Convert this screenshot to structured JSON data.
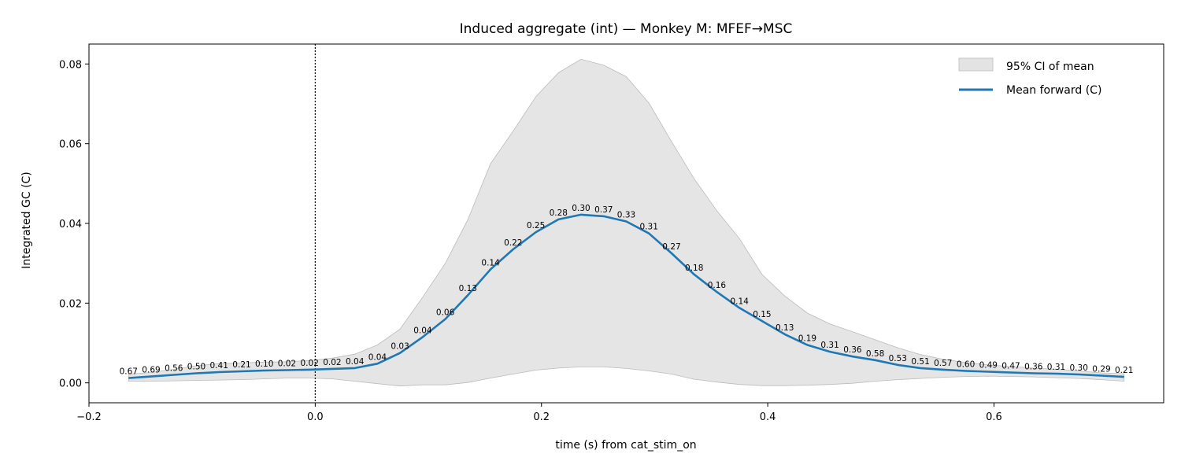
{
  "chart_data": {
    "type": "line",
    "title": "Induced aggregate (int) — Monkey M: MFEF→MSC",
    "xlabel": "time (s) from cat_stim_on",
    "ylabel": "Integrated GC (C)",
    "xlim": [
      -0.2,
      0.75
    ],
    "ylim": [
      -0.005,
      0.085
    ],
    "xticks": [
      -0.2,
      0.0,
      0.2,
      0.4,
      0.6
    ],
    "xtick_labels": [
      "−0.2",
      "0.0",
      "0.2",
      "0.4",
      "0.6"
    ],
    "yticks": [
      0.0,
      0.02,
      0.04,
      0.06,
      0.08
    ],
    "ytick_labels": [
      "0.00",
      "0.02",
      "0.04",
      "0.06",
      "0.08"
    ],
    "event_line_x": 0.0,
    "grid": false,
    "legend_position": "top-right",
    "series": [
      {
        "name": "Mean forward (C)",
        "color": "#1f77b4",
        "x": [
          -0.165,
          -0.145,
          -0.125,
          -0.105,
          -0.085,
          -0.065,
          -0.045,
          -0.025,
          -0.005,
          0.015,
          0.035,
          0.055,
          0.075,
          0.095,
          0.115,
          0.135,
          0.155,
          0.175,
          0.195,
          0.215,
          0.235,
          0.255,
          0.275,
          0.295,
          0.315,
          0.335,
          0.355,
          0.375,
          0.395,
          0.415,
          0.435,
          0.455,
          0.475,
          0.495,
          0.515,
          0.535,
          0.555,
          0.575,
          0.595,
          0.615,
          0.635,
          0.655,
          0.675,
          0.695,
          0.715
        ],
        "y": [
          0.0012,
          0.0016,
          0.002,
          0.0024,
          0.0027,
          0.0029,
          0.0031,
          0.0032,
          0.0033,
          0.0035,
          0.0037,
          0.0048,
          0.0075,
          0.0115,
          0.016,
          0.022,
          0.0285,
          0.0335,
          0.0378,
          0.041,
          0.0422,
          0.0418,
          0.0405,
          0.0375,
          0.0325,
          0.0272,
          0.0228,
          0.0188,
          0.0155,
          0.0122,
          0.0095,
          0.0078,
          0.0066,
          0.0057,
          0.0045,
          0.0037,
          0.0033,
          0.003,
          0.0028,
          0.0026,
          0.0024,
          0.0023,
          0.0021,
          0.0018,
          0.0015
        ]
      }
    ],
    "ci_band": {
      "name": "95% CI of mean",
      "color": "#cccccc",
      "lower": [
        0.0004,
        0.0004,
        0.0005,
        0.0006,
        0.0007,
        0.0008,
        0.001,
        0.0012,
        0.0012,
        0.001,
        0.0004,
        -0.0002,
        -0.0008,
        -0.0005,
        -0.0005,
        0.0001,
        0.0012,
        0.0022,
        0.0032,
        0.0037,
        0.004,
        0.004,
        0.0036,
        0.003,
        0.0022,
        0.0009,
        0.0002,
        -0.0004,
        -0.0007,
        -0.0007,
        -0.0006,
        -0.0004,
        -0.0001,
        0.0004,
        0.0008,
        0.0011,
        0.0014,
        0.0016,
        0.0017,
        0.0016,
        0.0015,
        0.0013,
        0.0011,
        0.0008,
        0.0004
      ],
      "upper": [
        0.0022,
        0.0026,
        0.0034,
        0.0043,
        0.0048,
        0.005,
        0.0052,
        0.0053,
        0.0056,
        0.0062,
        0.0072,
        0.0095,
        0.0135,
        0.0215,
        0.03,
        0.041,
        0.055,
        0.0632,
        0.0718,
        0.0778,
        0.0812,
        0.0797,
        0.0768,
        0.0702,
        0.0605,
        0.0512,
        0.0432,
        0.0362,
        0.0272,
        0.0218,
        0.0175,
        0.0148,
        0.0128,
        0.0108,
        0.0088,
        0.0071,
        0.0059,
        0.0051,
        0.0045,
        0.0041,
        0.0037,
        0.0034,
        0.003,
        0.0025,
        0.0023
      ]
    },
    "point_labels": [
      "0.67",
      "0.69",
      "0.56",
      "0.50",
      "0.41",
      "0.21",
      "0.10",
      "0.02",
      "0.02",
      "0.02",
      "0.04",
      "0.04",
      "0.03",
      "0.04",
      "0.06",
      "0.13",
      "0.14",
      "0.22",
      "0.25",
      "0.28",
      "0.30",
      "0.37",
      "0.33",
      "0.31",
      "0.27",
      "0.18",
      "0.16",
      "0.14",
      "0.15",
      "0.13",
      "0.19",
      "0.31",
      "0.36",
      "0.58",
      "0.53",
      "0.51",
      "0.57",
      "0.60",
      "0.49",
      "0.47",
      "0.36",
      "0.31",
      "0.30",
      "0.29",
      "0.21"
    ]
  },
  "legend": {
    "ci_label": "95% CI of mean",
    "mean_label": "Mean forward (C)"
  }
}
